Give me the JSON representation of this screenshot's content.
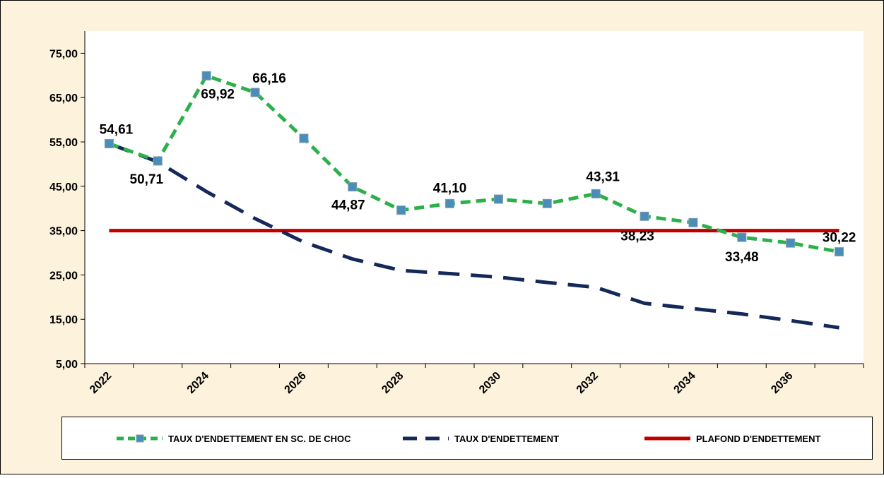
{
  "chart_data": {
    "type": "line",
    "categories": [
      "2022",
      null,
      "2024",
      null,
      "2026",
      null,
      "2028",
      null,
      "2030",
      null,
      "2032",
      null,
      "2034",
      null,
      "2036",
      null
    ],
    "ylim": [
      5,
      80
    ],
    "yticks": [
      {
        "value": 5,
        "label": "5,00"
      },
      {
        "value": 15,
        "label": "15,00"
      },
      {
        "value": 25,
        "label": "25,00"
      },
      {
        "value": 35,
        "label": "35,00"
      },
      {
        "value": 45,
        "label": "45,00"
      },
      {
        "value": 55,
        "label": "55,00"
      },
      {
        "value": 65,
        "label": "65,00"
      },
      {
        "value": 75,
        "label": "75,00"
      }
    ],
    "series": [
      {
        "name": "TAUX D'ENDETTEMENT EN SC. DE CHOC",
        "color": "#2cb04a",
        "marker_color": "#4a8db8",
        "values": [
          54.61,
          50.71,
          69.92,
          66.16,
          55.8,
          44.87,
          39.6,
          41.1,
          42.1,
          41.1,
          43.31,
          38.23,
          36.8,
          33.48,
          32.2,
          30.22
        ],
        "value_labels": [
          "54,61",
          "50,71",
          "69,92",
          "66,16",
          null,
          "44,87",
          null,
          "41,10",
          null,
          null,
          "43,31",
          "38,23",
          null,
          "33,48",
          null,
          "30,22"
        ]
      },
      {
        "name": "TAUX D'ENDETTEMENT",
        "color": "#14285a",
        "values": [
          54.61,
          50.5,
          43.8,
          37.7,
          32.4,
          28.6,
          26.0,
          25.3,
          24.5,
          23.3,
          22.2,
          18.6,
          17.4,
          16.2,
          14.7,
          13.1
        ]
      },
      {
        "name": "PLAFOND D'ENDETTEMENT",
        "color": "#c00000",
        "values": [
          35,
          35,
          35,
          35,
          35,
          35,
          35,
          35,
          35,
          35,
          35,
          35,
          35,
          35,
          35,
          35
        ]
      }
    ]
  }
}
